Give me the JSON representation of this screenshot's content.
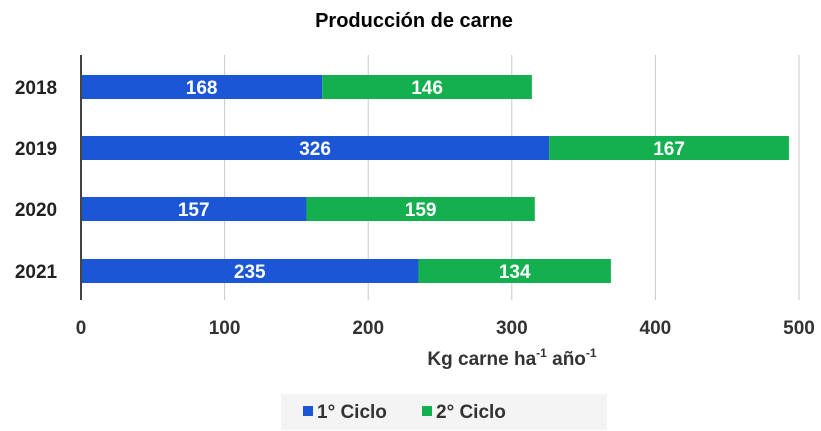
{
  "chart_data": {
    "type": "bar",
    "orientation": "horizontal",
    "stacked": true,
    "title": "Producción de carne",
    "xlabel": "Kg carne ha",
    "xlabel_sup1": "-1",
    "xlabel_mid": " año",
    "xlabel_sup2": "-1",
    "ylabel": "",
    "categories": [
      "2018",
      "2019",
      "2020",
      "2021"
    ],
    "series": [
      {
        "name": "1° Ciclo",
        "color": "#1a56d6",
        "values": [
          168,
          326,
          157,
          235
        ]
      },
      {
        "name": "2° Ciclo",
        "color": "#14b050",
        "values": [
          146,
          167,
          159,
          134
        ]
      }
    ],
    "xlim": [
      0,
      500
    ],
    "xticks": [
      0,
      100,
      200,
      300,
      400,
      500
    ],
    "grid": true,
    "legend": "bottom"
  }
}
